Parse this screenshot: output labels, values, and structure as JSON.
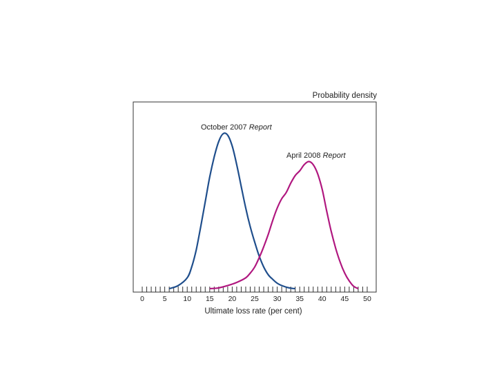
{
  "chart_data": {
    "type": "line",
    "ylabel": "Probability density",
    "xlabel": "Ultimate loss rate (per cent)",
    "xlim": [
      -2,
      52
    ],
    "ylim": [
      0,
      1.05
    ],
    "x_ticks": [
      0,
      5,
      10,
      15,
      20,
      25,
      30,
      35,
      40,
      45,
      50
    ],
    "x_tick_labels": [
      "0",
      "5",
      "10",
      "15",
      "20",
      "25",
      "30",
      "35",
      "40",
      "45",
      "50"
    ],
    "minor_tick_step": 1,
    "grid": false,
    "colors": {
      "oct2007": "#1f4e8c",
      "apr2008": "#b0177f",
      "axis": "#333333"
    },
    "series": [
      {
        "name": "October 2007 Report",
        "name_parts": [
          "October 2007 ",
          "Report"
        ],
        "color": "#1f4e8c",
        "x": [
          6,
          8,
          10,
          11,
          12,
          13,
          14,
          15,
          16,
          17,
          18,
          19,
          20,
          21,
          22,
          23,
          24,
          25,
          26,
          27,
          28,
          29,
          30,
          31,
          32,
          33,
          34
        ],
        "y": [
          0.0,
          0.02,
          0.07,
          0.14,
          0.25,
          0.4,
          0.56,
          0.72,
          0.85,
          0.95,
          1.0,
          0.99,
          0.92,
          0.8,
          0.66,
          0.52,
          0.4,
          0.3,
          0.21,
          0.14,
          0.09,
          0.06,
          0.035,
          0.02,
          0.01,
          0.003,
          0.0
        ]
      },
      {
        "name": "April 2008 Report",
        "name_parts": [
          "April 2008 ",
          "Report"
        ],
        "color": "#b0177f",
        "x": [
          15,
          17,
          19,
          21,
          23,
          24,
          25,
          26,
          27,
          28,
          29,
          30,
          31,
          32,
          33,
          34,
          35,
          36,
          37,
          38,
          39,
          40,
          41,
          42,
          43,
          44,
          45,
          46,
          47,
          48
        ],
        "y": [
          0.0,
          0.005,
          0.02,
          0.04,
          0.07,
          0.1,
          0.14,
          0.2,
          0.27,
          0.35,
          0.44,
          0.52,
          0.58,
          0.62,
          0.68,
          0.73,
          0.76,
          0.8,
          0.82,
          0.8,
          0.74,
          0.64,
          0.5,
          0.37,
          0.26,
          0.17,
          0.1,
          0.05,
          0.015,
          0.0
        ]
      }
    ]
  }
}
